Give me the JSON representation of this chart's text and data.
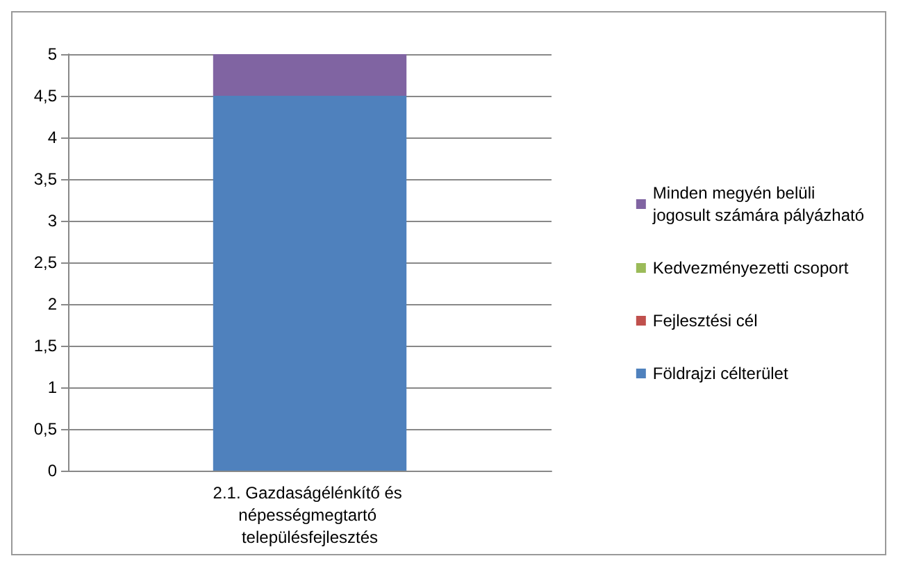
{
  "chart_data": {
    "type": "bar",
    "stacked": true,
    "categories": [
      "2.1. Gazdaságélénkítő és népességmegtartó településfejlesztés"
    ],
    "series": [
      {
        "name": "Földrajzi célterület",
        "color": "#4f81bd",
        "values": [
          4.5
        ]
      },
      {
        "name": "Fejlesztési cél",
        "color": "#c0504d",
        "values": [
          0
        ]
      },
      {
        "name": "Kedvezményezetti csoport",
        "color": "#9bbb59",
        "values": [
          0
        ]
      },
      {
        "name": "Minden megyén belüli jogosult számára pályázható",
        "color": "#8064a2",
        "values": [
          0.5
        ]
      }
    ],
    "ylim": [
      0,
      5
    ],
    "yticks": [
      0,
      {
        "value": 0.5,
        "label": "0,5"
      },
      1,
      {
        "value": 1.5,
        "label": "1,5"
      },
      2,
      {
        "value": 2.5,
        "label": "2,5"
      },
      3,
      {
        "value": 3.5,
        "label": "3,5"
      },
      4,
      {
        "value": 4.5,
        "label": "4,5"
      },
      5
    ],
    "grid": "y",
    "legend": "right"
  }
}
